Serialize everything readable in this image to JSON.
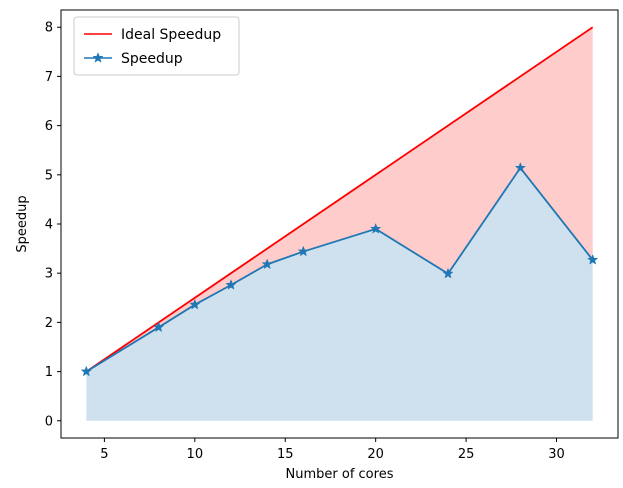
{
  "chart_data": {
    "type": "line",
    "xlabel": "Number of cores",
    "ylabel": "Speedup",
    "xlim": [
      2.6,
      33.4
    ],
    "ylim": [
      -0.35,
      8.35
    ],
    "xticks": [
      5,
      10,
      15,
      20,
      25,
      30
    ],
    "yticks": [
      0,
      1,
      2,
      3,
      4,
      5,
      6,
      7,
      8
    ],
    "grid": false,
    "legend_position": "top-left",
    "series": [
      {
        "name": "Ideal Speedup",
        "color": "#ff0000",
        "fill_color": "#ffcccc",
        "marker": "none",
        "x": [
          4,
          32
        ],
        "y": [
          1,
          8
        ]
      },
      {
        "name": "Speedup",
        "color": "#1f77b4",
        "fill_color": "#cfe0ee",
        "marker": "star",
        "x": [
          4,
          8,
          10,
          12,
          14,
          16,
          20,
          24,
          28,
          32
        ],
        "y": [
          1.0,
          1.9,
          2.36,
          2.76,
          3.18,
          3.44,
          3.9,
          2.99,
          5.14,
          3.27
        ]
      }
    ]
  }
}
